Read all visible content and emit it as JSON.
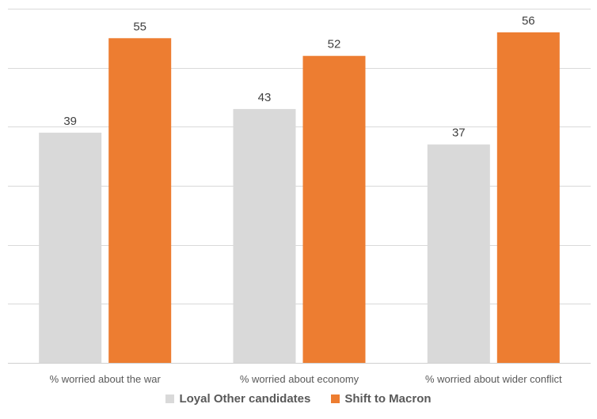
{
  "chart_data": {
    "type": "bar",
    "categories": [
      "% worried about the war",
      "% worried about economy",
      "% worried about wider conflict"
    ],
    "series": [
      {
        "name": "Loyal Other candidates",
        "values": [
          39,
          43,
          37
        ],
        "color": "#d9d9d9"
      },
      {
        "name": "Shift to Macron",
        "values": [
          55,
          52,
          56
        ],
        "color": "#ed7d31"
      }
    ],
    "ylim": [
      0,
      60
    ],
    "ytick_step": 10,
    "grid": true,
    "legend_position": "bottom-center",
    "data_labels": true,
    "title": "",
    "xlabel": "",
    "ylabel": ""
  }
}
